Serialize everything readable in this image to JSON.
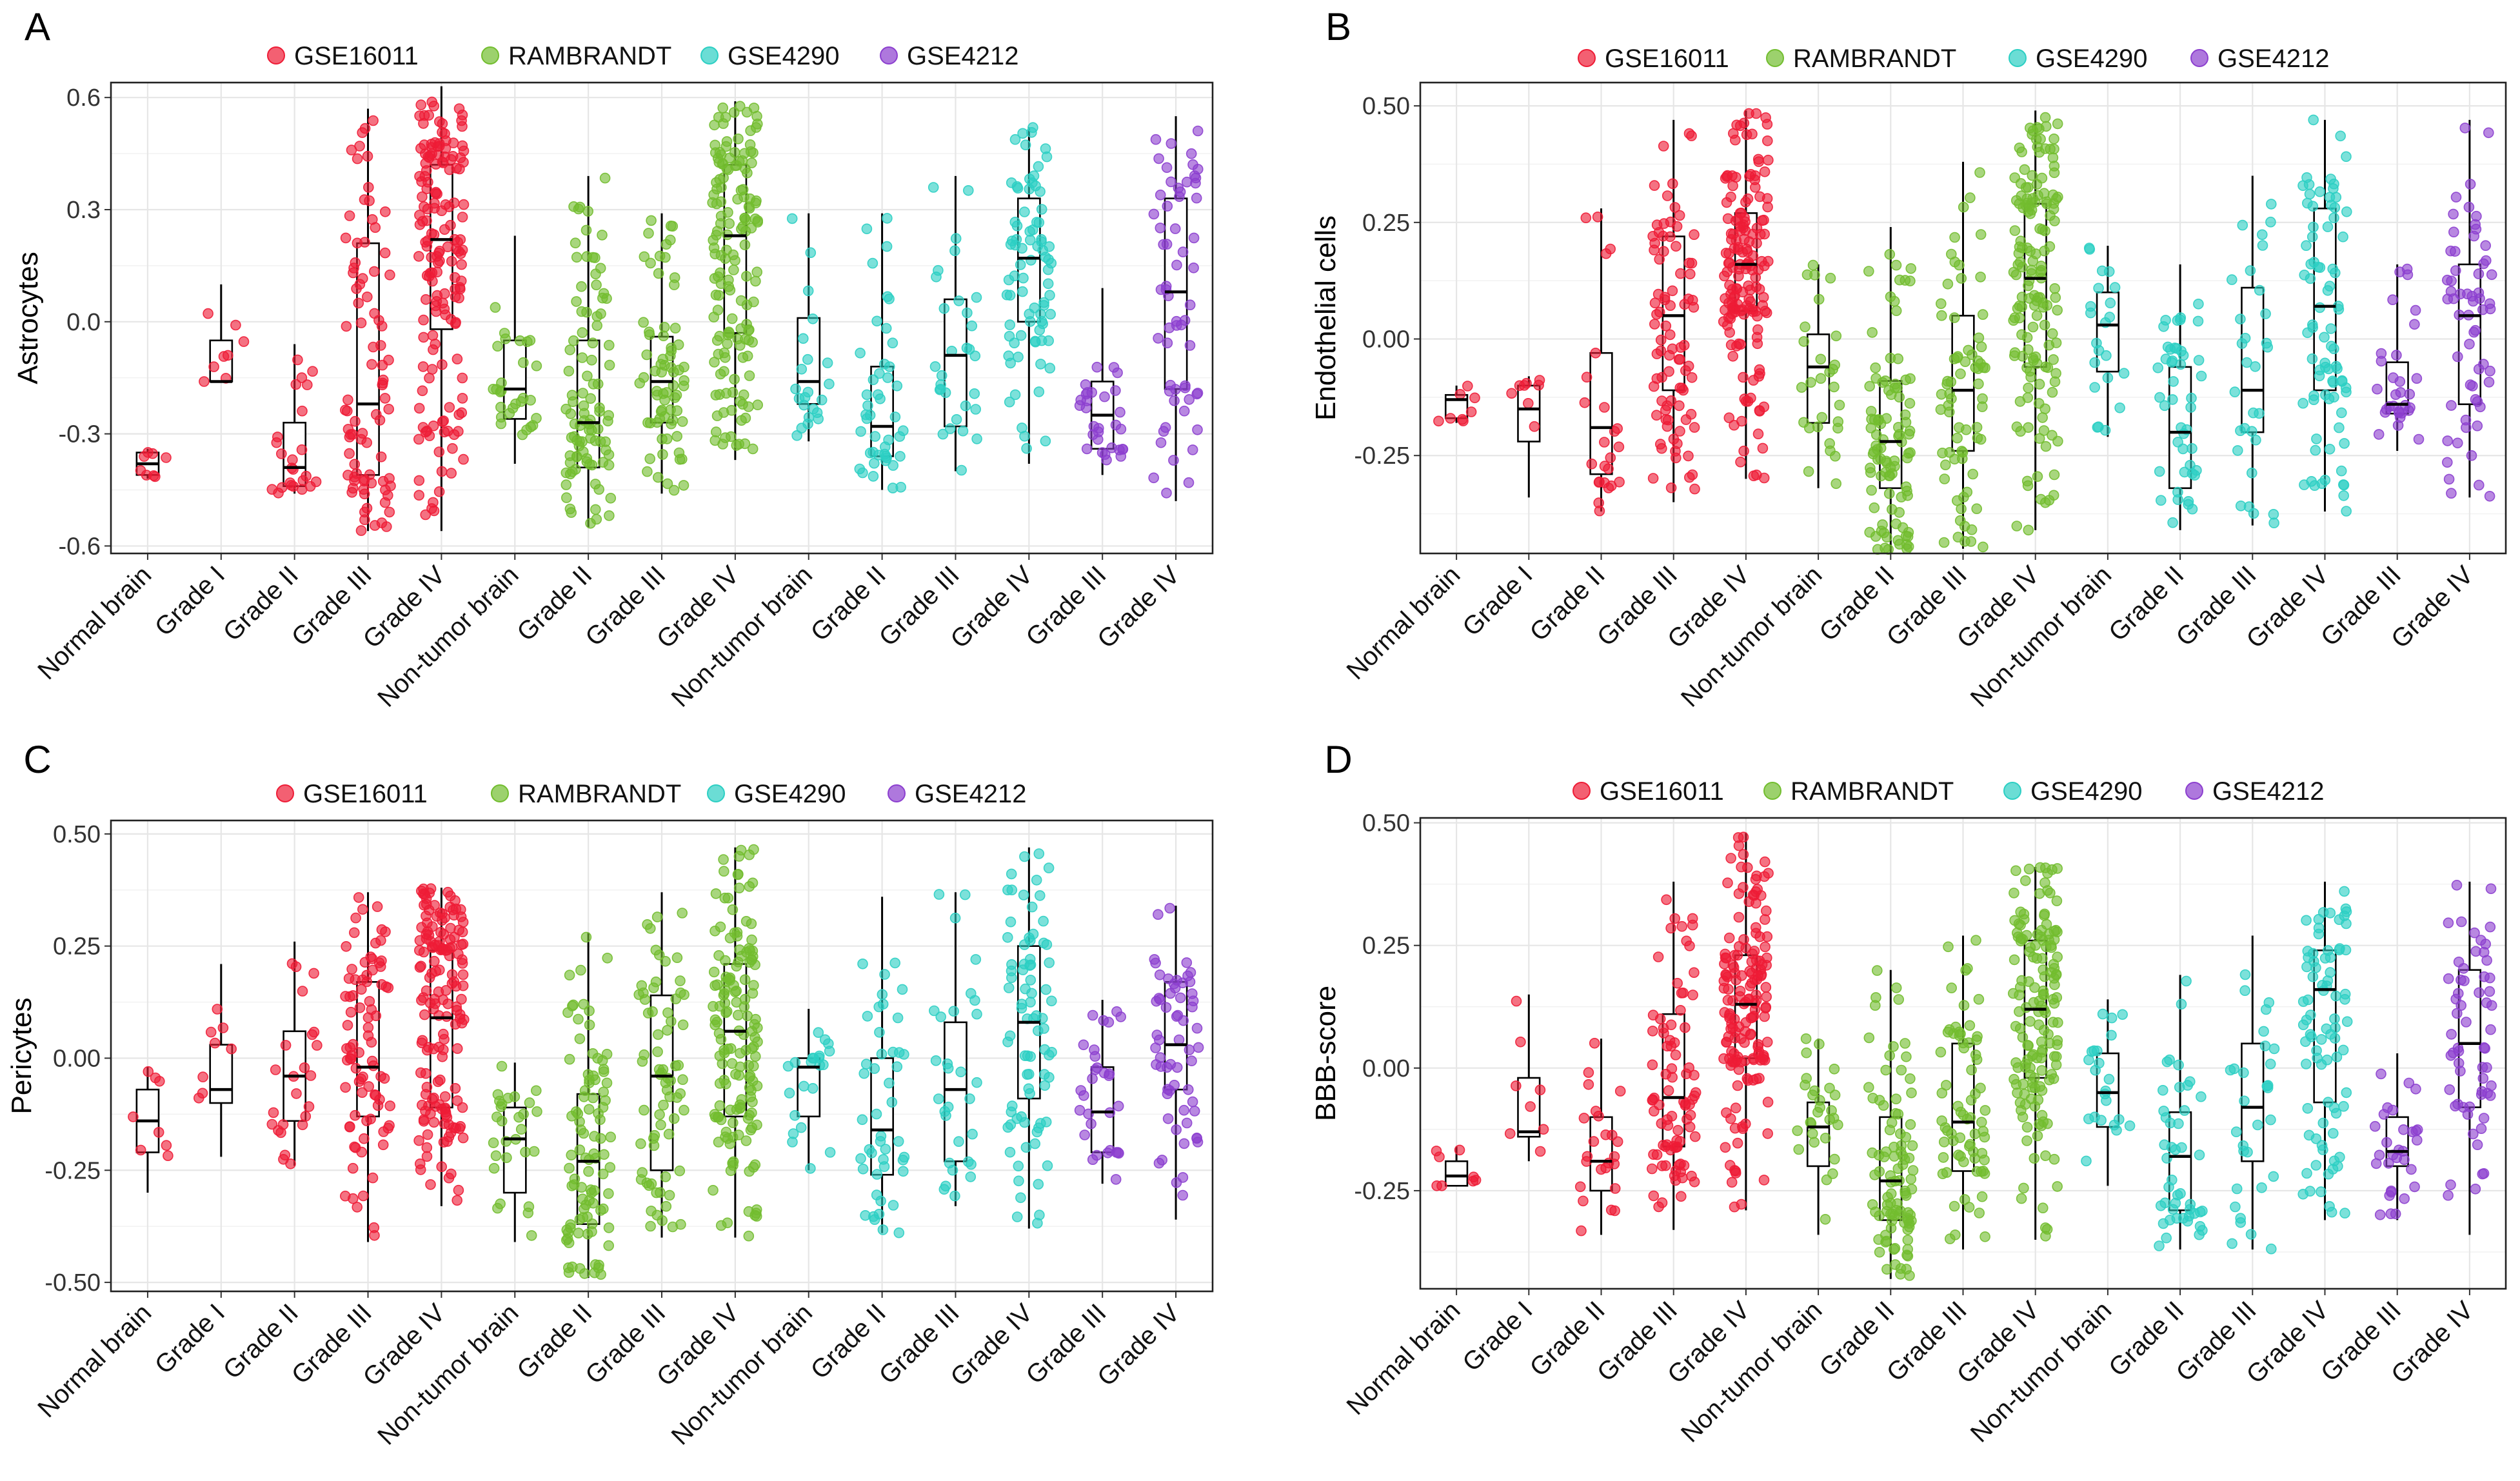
{
  "figure": {
    "colors": {
      "GSE16011": "#ee1c36",
      "RAMBRANDT": "#72bd2f",
      "GSE4290": "#2ccfc3",
      "GSE4212": "#8c3fcf"
    },
    "legend": [
      "GSE16011",
      "RAMBRANDT",
      "GSE4290",
      "GSE4212"
    ]
  },
  "chart_data": [
    {
      "type": "box+jitter",
      "panel": "A",
      "title": "",
      "xlabel": "",
      "ylabel": "Astrocytes",
      "ylim": [
        -0.62,
        0.64
      ],
      "yticks": [
        {
          "value": 0.6,
          "label": "0.6"
        },
        {
          "value": 0.3,
          "label": "0.3"
        },
        {
          "value": 0.0,
          "label": "0.0"
        },
        {
          "value": -0.3,
          "label": "-0.3"
        },
        {
          "value": -0.6,
          "label": "-0.6"
        }
      ],
      "categories": [
        {
          "label": "Normal brain",
          "dataset": "GSE16011",
          "n": 8,
          "box": [
            -0.42,
            -0.41,
            -0.38,
            -0.35,
            -0.34
          ]
        },
        {
          "label": "Grade I",
          "dataset": "GSE16011",
          "n": 8,
          "box": [
            -0.16,
            -0.16,
            -0.16,
            -0.05,
            0.1
          ]
        },
        {
          "label": "Grade II",
          "dataset": "GSE16011",
          "n": 24,
          "box": [
            -0.46,
            -0.44,
            -0.39,
            -0.27,
            -0.06
          ]
        },
        {
          "label": "Grade III",
          "dataset": "GSE16011",
          "n": 85,
          "box": [
            -0.56,
            -0.41,
            -0.22,
            0.21,
            0.57
          ]
        },
        {
          "label": "Grade IV",
          "dataset": "GSE16011",
          "n": 160,
          "box": [
            -0.56,
            -0.02,
            0.22,
            0.42,
            0.63
          ]
        },
        {
          "label": "Non-tumor brain",
          "dataset": "RAMBRANDT",
          "n": 28,
          "box": [
            -0.38,
            -0.26,
            -0.18,
            -0.05,
            0.23
          ]
        },
        {
          "label": "Grade II",
          "dataset": "RAMBRANDT",
          "n": 95,
          "box": [
            -0.55,
            -0.39,
            -0.27,
            -0.05,
            0.39
          ]
        },
        {
          "label": "Grade III",
          "dataset": "RAMBRANDT",
          "n": 70,
          "box": [
            -0.46,
            -0.27,
            -0.16,
            -0.04,
            0.29
          ]
        },
        {
          "label": "Grade IV",
          "dataset": "RAMBRANDT",
          "n": 150,
          "box": [
            -0.37,
            -0.03,
            0.23,
            0.42,
            0.59
          ]
        },
        {
          "label": "Non-tumor brain",
          "dataset": "GSE4290",
          "n": 22,
          "box": [
            -0.32,
            -0.22,
            -0.16,
            0.01,
            0.29
          ]
        },
        {
          "label": "Grade II",
          "dataset": "GSE4290",
          "n": 45,
          "box": [
            -0.45,
            -0.36,
            -0.28,
            -0.12,
            0.29
          ]
        },
        {
          "label": "Grade III",
          "dataset": "GSE4290",
          "n": 30,
          "box": [
            -0.4,
            -0.28,
            -0.09,
            0.06,
            0.39
          ]
        },
        {
          "label": "Grade IV",
          "dataset": "GSE4290",
          "n": 80,
          "box": [
            -0.38,
            0.0,
            0.17,
            0.33,
            0.52
          ]
        },
        {
          "label": "Grade III",
          "dataset": "GSE4212",
          "n": 30,
          "box": [
            -0.41,
            -0.34,
            -0.25,
            -0.16,
            0.09
          ]
        },
        {
          "label": "Grade IV",
          "dataset": "GSE4212",
          "n": 60,
          "box": [
            -0.48,
            -0.18,
            0.08,
            0.33,
            0.55
          ]
        }
      ]
    },
    {
      "type": "box+jitter",
      "panel": "B",
      "title": "",
      "xlabel": "",
      "ylabel": "Endothelial cells",
      "ylim": [
        -0.46,
        0.55
      ],
      "yticks": [
        {
          "value": 0.5,
          "label": "0.50"
        },
        {
          "value": 0.25,
          "label": "0.25"
        },
        {
          "value": 0.0,
          "label": "0.00"
        },
        {
          "value": -0.25,
          "label": "-0.25"
        }
      ],
      "categories": [
        {
          "label": "Normal brain",
          "dataset": "GSE16011",
          "n": 8,
          "box": [
            -0.18,
            -0.17,
            -0.13,
            -0.12,
            -0.1
          ]
        },
        {
          "label": "Grade I",
          "dataset": "GSE16011",
          "n": 8,
          "box": [
            -0.34,
            -0.22,
            -0.15,
            -0.1,
            -0.08
          ]
        },
        {
          "label": "Grade II",
          "dataset": "GSE16011",
          "n": 24,
          "box": [
            -0.37,
            -0.29,
            -0.19,
            -0.03,
            0.28
          ]
        },
        {
          "label": "Grade III",
          "dataset": "GSE16011",
          "n": 85,
          "box": [
            -0.35,
            -0.11,
            0.05,
            0.22,
            0.47
          ]
        },
        {
          "label": "Grade IV",
          "dataset": "GSE16011",
          "n": 160,
          "box": [
            -0.3,
            0.06,
            0.16,
            0.27,
            0.49
          ]
        },
        {
          "label": "Non-tumor brain",
          "dataset": "RAMBRANDT",
          "n": 28,
          "box": [
            -0.32,
            -0.18,
            -0.06,
            0.01,
            0.16
          ]
        },
        {
          "label": "Grade II",
          "dataset": "RAMBRANDT",
          "n": 95,
          "box": [
            -0.46,
            -0.32,
            -0.22,
            -0.09,
            0.24
          ]
        },
        {
          "label": "Grade III",
          "dataset": "RAMBRANDT",
          "n": 70,
          "box": [
            -0.45,
            -0.24,
            -0.11,
            0.05,
            0.38
          ]
        },
        {
          "label": "Grade IV",
          "dataset": "RAMBRANDT",
          "n": 150,
          "box": [
            -0.41,
            -0.06,
            0.13,
            0.29,
            0.49
          ]
        },
        {
          "label": "Non-tumor brain",
          "dataset": "GSE4290",
          "n": 22,
          "box": [
            -0.21,
            -0.07,
            0.03,
            0.1,
            0.2
          ]
        },
        {
          "label": "Grade II",
          "dataset": "GSE4290",
          "n": 45,
          "box": [
            -0.41,
            -0.32,
            -0.2,
            -0.06,
            0.16
          ]
        },
        {
          "label": "Grade III",
          "dataset": "GSE4290",
          "n": 30,
          "box": [
            -0.4,
            -0.2,
            -0.11,
            0.11,
            0.35
          ]
        },
        {
          "label": "Grade IV",
          "dataset": "GSE4290",
          "n": 80,
          "box": [
            -0.37,
            -0.11,
            0.07,
            0.28,
            0.47
          ]
        },
        {
          "label": "Grade III",
          "dataset": "GSE4212",
          "n": 30,
          "box": [
            -0.24,
            -0.16,
            -0.14,
            -0.05,
            0.16
          ]
        },
        {
          "label": "Grade IV",
          "dataset": "GSE4212",
          "n": 60,
          "box": [
            -0.34,
            -0.14,
            0.05,
            0.16,
            0.47
          ]
        }
      ]
    },
    {
      "type": "box+jitter",
      "panel": "C",
      "title": "",
      "xlabel": "",
      "ylabel": "Pericytes",
      "ylim": [
        -0.52,
        0.53
      ],
      "yticks": [
        {
          "value": 0.5,
          "label": "0.50"
        },
        {
          "value": 0.25,
          "label": "0.25"
        },
        {
          "value": 0.0,
          "label": "0.00"
        },
        {
          "value": -0.25,
          "label": "-0.25"
        },
        {
          "value": -0.5,
          "label": "-0.50"
        }
      ],
      "categories": [
        {
          "label": "Normal brain",
          "dataset": "GSE16011",
          "n": 8,
          "box": [
            -0.3,
            -0.21,
            -0.14,
            -0.07,
            -0.02
          ]
        },
        {
          "label": "Grade I",
          "dataset": "GSE16011",
          "n": 8,
          "box": [
            -0.22,
            -0.1,
            -0.07,
            0.03,
            0.21
          ]
        },
        {
          "label": "Grade II",
          "dataset": "GSE16011",
          "n": 24,
          "box": [
            -0.24,
            -0.14,
            -0.04,
            0.06,
            0.26
          ]
        },
        {
          "label": "Grade III",
          "dataset": "GSE16011",
          "n": 85,
          "box": [
            -0.41,
            -0.13,
            -0.02,
            0.17,
            0.37
          ]
        },
        {
          "label": "Grade IV",
          "dataset": "GSE16011",
          "n": 160,
          "box": [
            -0.33,
            -0.11,
            0.09,
            0.24,
            0.38
          ]
        },
        {
          "label": "Non-tumor brain",
          "dataset": "RAMBRANDT",
          "n": 28,
          "box": [
            -0.41,
            -0.3,
            -0.18,
            -0.11,
            -0.01
          ]
        },
        {
          "label": "Grade II",
          "dataset": "RAMBRANDT",
          "n": 95,
          "box": [
            -0.49,
            -0.37,
            -0.23,
            -0.08,
            0.28
          ]
        },
        {
          "label": "Grade III",
          "dataset": "RAMBRANDT",
          "n": 70,
          "box": [
            -0.4,
            -0.25,
            -0.04,
            0.14,
            0.37
          ]
        },
        {
          "label": "Grade IV",
          "dataset": "RAMBRANDT",
          "n": 150,
          "box": [
            -0.4,
            -0.13,
            0.06,
            0.21,
            0.47
          ]
        },
        {
          "label": "Non-tumor brain",
          "dataset": "GSE4290",
          "n": 22,
          "box": [
            -0.25,
            -0.13,
            -0.02,
            0.0,
            0.11
          ]
        },
        {
          "label": "Grade II",
          "dataset": "GSE4290",
          "n": 45,
          "box": [
            -0.39,
            -0.26,
            -0.16,
            0.0,
            0.36
          ]
        },
        {
          "label": "Grade III",
          "dataset": "GSE4290",
          "n": 30,
          "box": [
            -0.33,
            -0.23,
            -0.07,
            0.08,
            0.37
          ]
        },
        {
          "label": "Grade IV",
          "dataset": "GSE4290",
          "n": 80,
          "box": [
            -0.38,
            -0.09,
            0.08,
            0.25,
            0.47
          ]
        },
        {
          "label": "Grade III",
          "dataset": "GSE4212",
          "n": 30,
          "box": [
            -0.28,
            -0.21,
            -0.12,
            -0.02,
            0.13
          ]
        },
        {
          "label": "Grade IV",
          "dataset": "GSE4212",
          "n": 60,
          "box": [
            -0.36,
            -0.07,
            0.03,
            0.17,
            0.34
          ]
        }
      ]
    },
    {
      "type": "box+jitter",
      "panel": "D",
      "title": "",
      "xlabel": "",
      "ylabel": "BBB-score",
      "ylim": [
        -0.45,
        0.51
      ],
      "yticks": [
        {
          "value": 0.5,
          "label": "0.50"
        },
        {
          "value": 0.25,
          "label": "0.25"
        },
        {
          "value": 0.0,
          "label": "0.00"
        },
        {
          "value": -0.25,
          "label": "-0.25"
        }
      ],
      "categories": [
        {
          "label": "Normal brain",
          "dataset": "GSE16011",
          "n": 8,
          "box": [
            -0.24,
            -0.24,
            -0.22,
            -0.19,
            -0.16
          ]
        },
        {
          "label": "Grade I",
          "dataset": "GSE16011",
          "n": 8,
          "box": [
            -0.19,
            -0.14,
            -0.13,
            -0.02,
            0.15
          ]
        },
        {
          "label": "Grade II",
          "dataset": "GSE16011",
          "n": 24,
          "box": [
            -0.34,
            -0.25,
            -0.19,
            -0.1,
            0.06
          ]
        },
        {
          "label": "Grade III",
          "dataset": "GSE16011",
          "n": 85,
          "box": [
            -0.33,
            -0.16,
            -0.06,
            0.11,
            0.38
          ]
        },
        {
          "label": "Grade IV",
          "dataset": "GSE16011",
          "n": 160,
          "box": [
            -0.29,
            0.02,
            0.13,
            0.23,
            0.48
          ]
        },
        {
          "label": "Non-tumor brain",
          "dataset": "RAMBRANDT",
          "n": 28,
          "box": [
            -0.34,
            -0.2,
            -0.12,
            -0.07,
            0.06
          ]
        },
        {
          "label": "Grade II",
          "dataset": "RAMBRANDT",
          "n": 95,
          "box": [
            -0.43,
            -0.31,
            -0.23,
            -0.1,
            0.2
          ]
        },
        {
          "label": "Grade III",
          "dataset": "RAMBRANDT",
          "n": 70,
          "box": [
            -0.37,
            -0.21,
            -0.11,
            0.05,
            0.27
          ]
        },
        {
          "label": "Grade IV",
          "dataset": "RAMBRANDT",
          "n": 150,
          "box": [
            -0.35,
            -0.02,
            0.12,
            0.26,
            0.41
          ]
        },
        {
          "label": "Non-tumor brain",
          "dataset": "GSE4290",
          "n": 22,
          "box": [
            -0.24,
            -0.12,
            -0.05,
            0.03,
            0.14
          ]
        },
        {
          "label": "Grade II",
          "dataset": "GSE4290",
          "n": 45,
          "box": [
            -0.37,
            -0.29,
            -0.18,
            -0.09,
            0.19
          ]
        },
        {
          "label": "Grade III",
          "dataset": "GSE4290",
          "n": 30,
          "box": [
            -0.37,
            -0.19,
            -0.08,
            0.05,
            0.27
          ]
        },
        {
          "label": "Grade IV",
          "dataset": "GSE4290",
          "n": 80,
          "box": [
            -0.31,
            -0.07,
            0.16,
            0.24,
            0.38
          ]
        },
        {
          "label": "Grade III",
          "dataset": "GSE4212",
          "n": 30,
          "box": [
            -0.31,
            -0.2,
            -0.17,
            -0.1,
            0.03
          ]
        },
        {
          "label": "Grade IV",
          "dataset": "GSE4212",
          "n": 60,
          "box": [
            -0.34,
            -0.08,
            0.05,
            0.2,
            0.38
          ]
        }
      ]
    }
  ]
}
